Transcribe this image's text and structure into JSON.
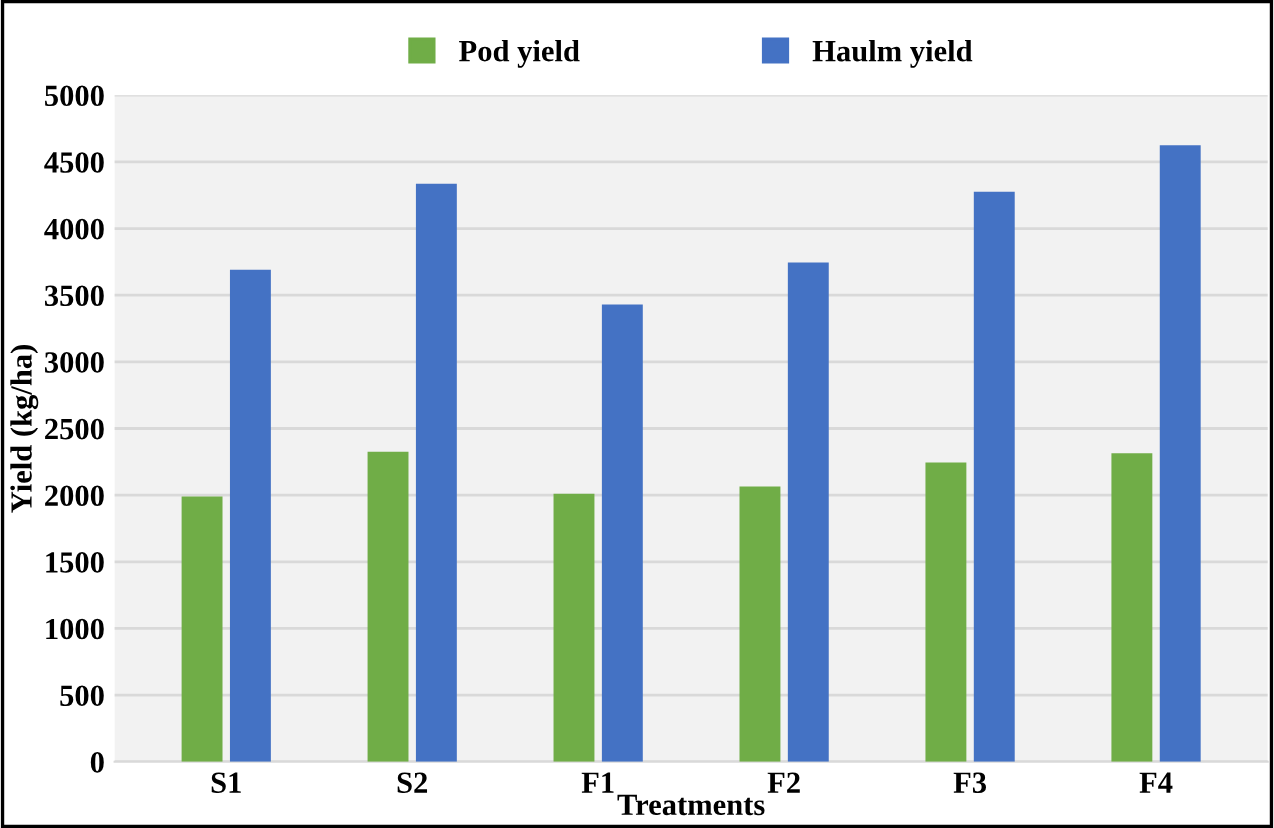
{
  "chart_data": {
    "type": "bar",
    "xlabel": "Treatments",
    "ylabel": "Yield (kg/ha)",
    "categories": [
      "S1",
      "S2",
      "F1",
      "F2",
      "F3",
      "F4"
    ],
    "series": [
      {
        "name": "Pod yield",
        "color": "#70ad47",
        "values": [
          1990,
          2325,
          2010,
          2065,
          2245,
          2315
        ]
      },
      {
        "name": "Haulm yield",
        "color": "#4472c4",
        "values": [
          3690,
          4335,
          3430,
          3745,
          4275,
          4625
        ]
      }
    ],
    "ylim": [
      0,
      5000
    ],
    "yticks": [
      0,
      500,
      1000,
      1500,
      2000,
      2500,
      3000,
      3500,
      4000,
      4500,
      5000
    ],
    "grid": "y",
    "legend": "top"
  }
}
